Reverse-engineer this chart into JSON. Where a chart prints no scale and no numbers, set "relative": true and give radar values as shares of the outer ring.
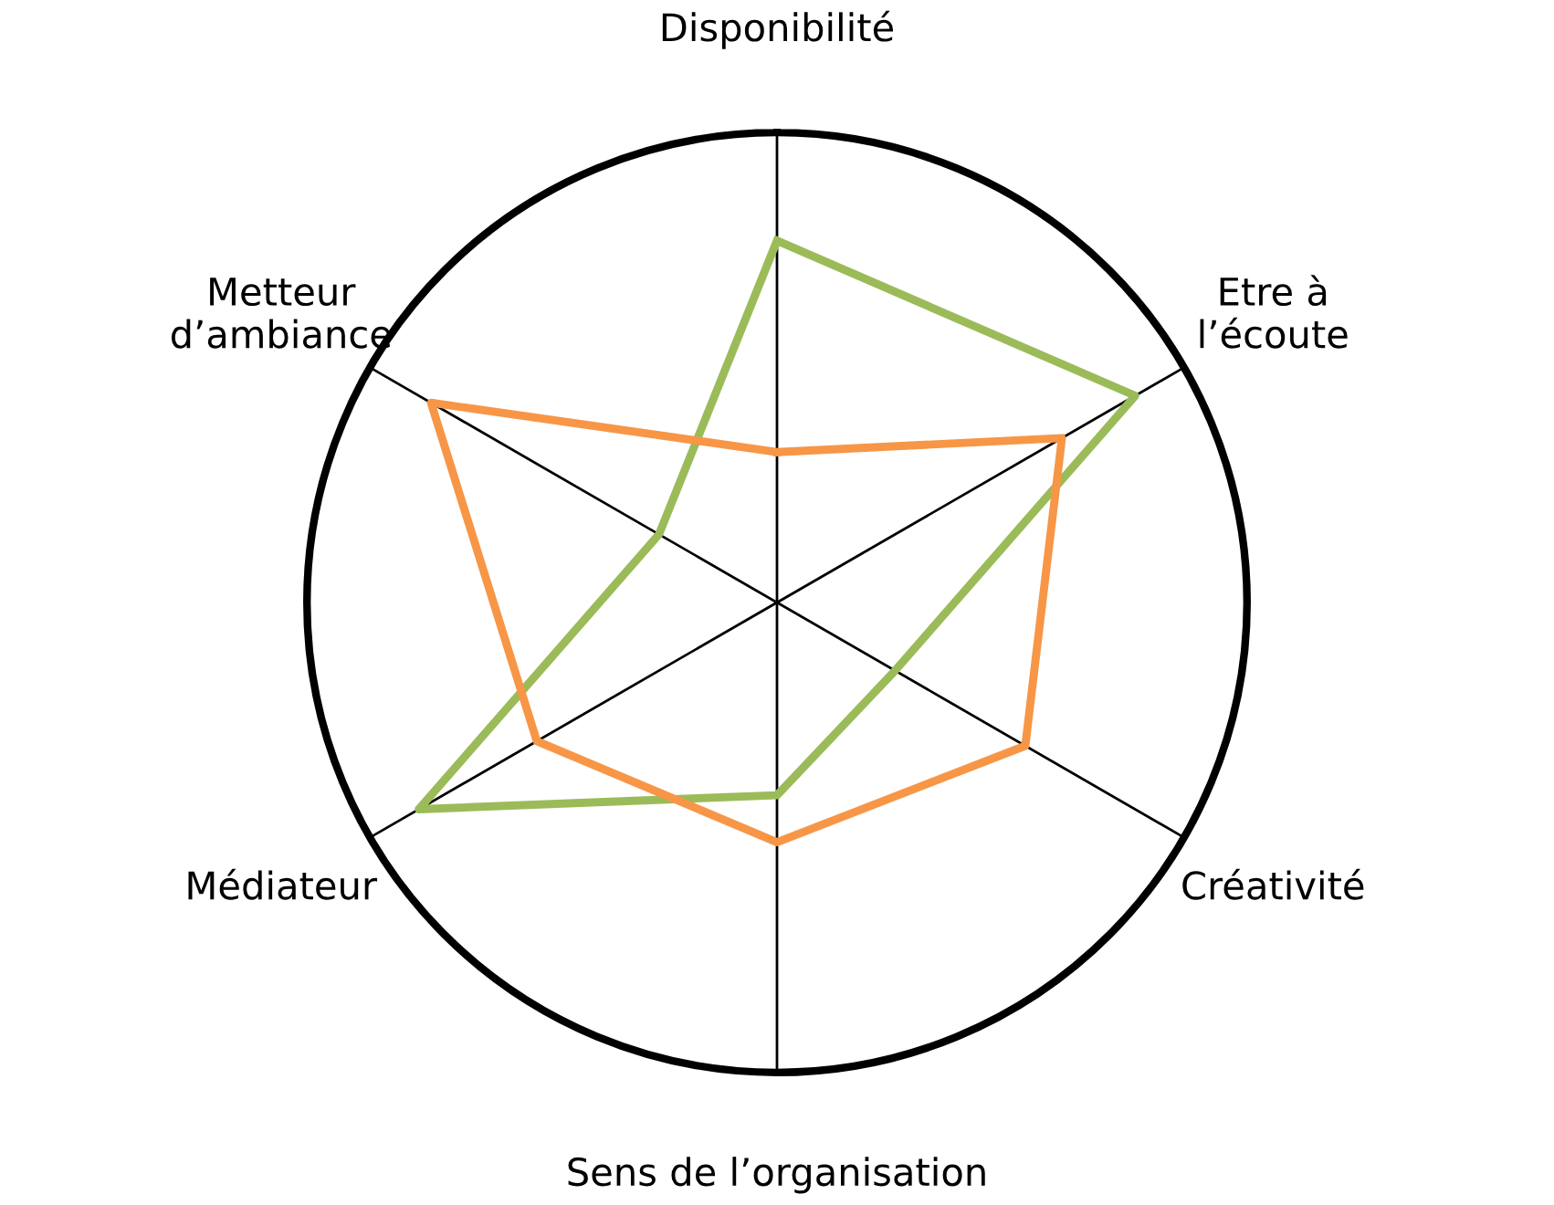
{
  "chart_data": {
    "type": "radar",
    "relative": true,
    "grid": "x",
    "categories": [
      "Disponibilité",
      "Etre à\nl’écoute",
      "Créativité",
      "Sens de l’organisation",
      "Médiateur",
      "Metteur\nd’ambiance"
    ],
    "series": [
      {
        "color": "#9bbb59",
        "values": [
          0.77,
          0.88,
          0.29,
          0.41,
          0.88,
          0.29
        ]
      },
      {
        "color": "#f79646",
        "values": [
          0.32,
          0.7,
          0.61,
          0.51,
          0.59,
          0.85
        ]
      }
    ]
  }
}
